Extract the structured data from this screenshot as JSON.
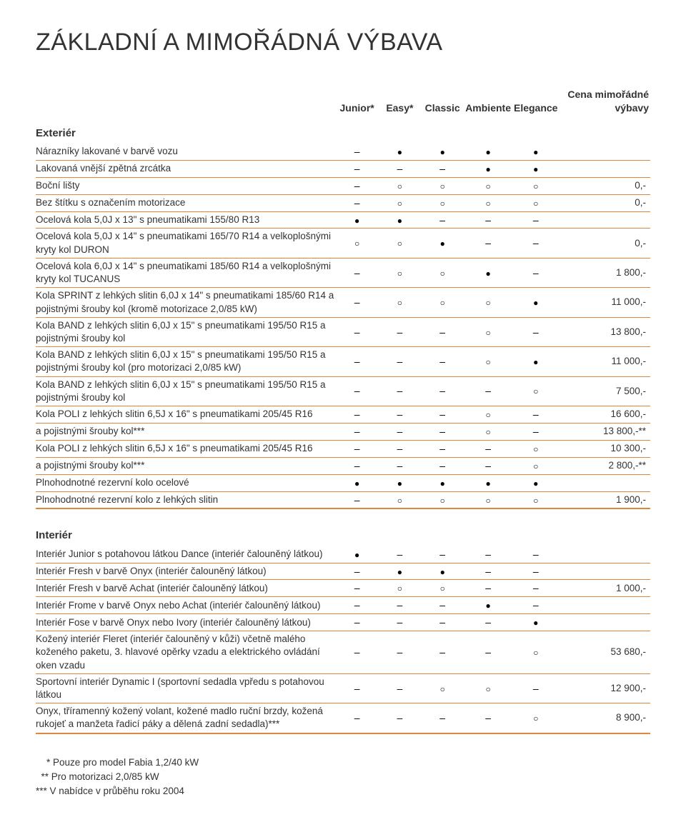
{
  "title": "ZÁKLADNÍ A MIMOŘÁDNÁ VÝBAVA",
  "columns": [
    "Junior*",
    "Easy*",
    "Classic",
    "Ambiente",
    "Elegance"
  ],
  "price_header": "Cena mimořádné výbavy",
  "sections": [
    {
      "name": "Exteriér",
      "rows": [
        {
          "label": "Nárazníky lakované v barvě vozu",
          "cells": [
            "–",
            "●",
            "●",
            "●",
            "●"
          ],
          "price": ""
        },
        {
          "label": "Lakovaná vnější zpětná zrcátka",
          "cells": [
            "–",
            "–",
            "–",
            "●",
            "●"
          ],
          "price": ""
        },
        {
          "label": "Boční lišty",
          "cells": [
            "–",
            "○",
            "○",
            "○",
            "○"
          ],
          "price": "0,-"
        },
        {
          "label": "Bez štítku s označením motorizace",
          "cells": [
            "–",
            "○",
            "○",
            "○",
            "○"
          ],
          "price": "0,-"
        },
        {
          "label": "Ocelová kola 5,0J x 13\" s pneumatikami 155/80 R13",
          "cells": [
            "●",
            "●",
            "–",
            "–",
            "–"
          ],
          "price": ""
        },
        {
          "label": "Ocelová kola 5,0J x 14\" s pneumatikami 165/70 R14 a velkoplošnými kryty kol DURON",
          "cells": [
            "○",
            "○",
            "●",
            "–",
            "–"
          ],
          "price": "0,-"
        },
        {
          "label": "Ocelová kola 6,0J x 14\" s pneumatikami 185/60 R14 a velkoplošnými kryty kol TUCANUS",
          "cells": [
            "–",
            "○",
            "○",
            "●",
            "–"
          ],
          "price": "1 800,-"
        },
        {
          "label": "Kola SPRINT z lehkých slitin 6,0J x 14\" s pneumatikami 185/60 R14 a pojistnými šrouby kol (kromě motorizace 2,0/85 kW)",
          "cells": [
            "–",
            "○",
            "○",
            "○",
            "●"
          ],
          "price": "11 000,-"
        },
        {
          "label": "Kola BAND z lehkých slitin 6,0J x 15\" s pneumatikami 195/50 R15 a pojistnými šrouby kol",
          "cells": [
            "–",
            "–",
            "–",
            "○",
            "–"
          ],
          "price": "13 800,-"
        },
        {
          "label": "Kola BAND z lehkých slitin 6,0J x 15\" s pneumatikami 195/50 R15 a pojistnými šrouby kol (pro motorizaci 2,0/85 kW)",
          "cells": [
            "–",
            "–",
            "–",
            "○",
            "●"
          ],
          "price": "11 000,-"
        },
        {
          "label": "Kola BAND z lehkých slitin 6,0J x 15\" s pneumatikami 195/50 R15 a pojistnými šrouby kol",
          "cells": [
            "–",
            "–",
            "–",
            "–",
            "○"
          ],
          "price": "7 500,-"
        },
        {
          "label": "Kola POLI z lehkých slitin 6,5J x 16\" s pneumatikami 205/45 R16",
          "cells": [
            "–",
            "–",
            "–",
            "○",
            "–"
          ],
          "price": "16 600,-"
        },
        {
          "label": "a pojistnými šrouby kol***",
          "cells": [
            "–",
            "–",
            "–",
            "○",
            "–"
          ],
          "price": "13 800,-**"
        },
        {
          "label": "Kola POLI z lehkých slitin 6,5J x 16\" s pneumatikami 205/45 R16",
          "cells": [
            "–",
            "–",
            "–",
            "–",
            "○"
          ],
          "price": "10 300,-"
        },
        {
          "label": "a pojistnými šrouby kol***",
          "cells": [
            "–",
            "–",
            "–",
            "–",
            "○"
          ],
          "price": "2 800,-**"
        },
        {
          "label": "Plnohodnotné rezervní kolo ocelové",
          "cells": [
            "●",
            "●",
            "●",
            "●",
            "●"
          ],
          "price": ""
        },
        {
          "label": "Plnohodnotné rezervní kolo z lehkých slitin",
          "cells": [
            "–",
            "○",
            "○",
            "○",
            "○"
          ],
          "price": "1 900,-"
        }
      ]
    },
    {
      "name": "Interiér",
      "rows": [
        {
          "label": "Interiér Junior s potahovou látkou Dance (interiér čalouněný látkou)",
          "cells": [
            "●",
            "–",
            "–",
            "–",
            "–"
          ],
          "price": ""
        },
        {
          "label": "Interiér Fresh v barvě Onyx (interiér čalouněný látkou)",
          "cells": [
            "–",
            "●",
            "●",
            "–",
            "–"
          ],
          "price": ""
        },
        {
          "label": "Interiér Fresh v barvě Achat (interiér čalouněný látkou)",
          "cells": [
            "–",
            "○",
            "○",
            "–",
            "–"
          ],
          "price": "1 000,-"
        },
        {
          "label": "Interiér Frome v barvě Onyx nebo Achat (interiér čalouněný látkou)",
          "cells": [
            "–",
            "–",
            "–",
            "●",
            "–"
          ],
          "price": ""
        },
        {
          "label": "Interiér Fose v barvě Onyx nebo Ivory (interiér čalouněný látkou)",
          "cells": [
            "–",
            "–",
            "–",
            "–",
            "●"
          ],
          "price": ""
        },
        {
          "label": "Kožený interiér Fleret (interiér čalouněný v kůži) včetně malého koženého paketu, 3. hlavové opěrky vzadu a elektrického ovládání oken vzadu",
          "cells": [
            "–",
            "–",
            "–",
            "–",
            "○"
          ],
          "price": "53 680,-"
        },
        {
          "label": "Sportovní interiér Dynamic I (sportovní sedadla vpředu s potahovou látkou",
          "cells": [
            "–",
            "–",
            "○",
            "○",
            "–"
          ],
          "price": "12 900,-"
        },
        {
          "label": "Onyx, tříramenný kožený volant, kožené madlo ruční brzdy, kožená rukojeť a manžeta řadicí páky a dělená zadní sedadla)***",
          "cells": [
            "–",
            "–",
            "–",
            "–",
            "○"
          ],
          "price": "8 900,-"
        }
      ]
    }
  ],
  "footnotes": [
    "    * Pouze pro model Fabia 1,2/40 kW",
    "  ** Pro motorizaci 2,0/85 kW",
    "*** V nabídce v průběhu roku 2004"
  ],
  "colors": {
    "divider": "#e0873f",
    "text": "#333333",
    "background": "#ffffff"
  }
}
